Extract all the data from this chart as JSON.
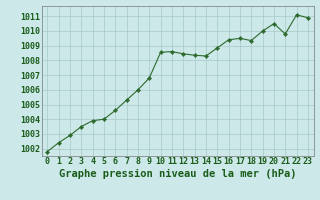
{
  "x": [
    0,
    1,
    2,
    3,
    4,
    5,
    6,
    7,
    8,
    9,
    10,
    11,
    12,
    13,
    14,
    15,
    16,
    17,
    18,
    19,
    20,
    21,
    22,
    23
  ],
  "y": [
    1001.8,
    1002.4,
    1002.9,
    1003.5,
    1003.9,
    1004.0,
    1004.6,
    1005.3,
    1006.0,
    1006.8,
    1008.55,
    1008.6,
    1008.45,
    1008.35,
    1008.3,
    1008.85,
    1009.4,
    1009.5,
    1009.35,
    1010.0,
    1010.5,
    1009.8,
    1011.1,
    1010.9
  ],
  "line_color": "#2d6a2d",
  "marker_color": "#2d6a2d",
  "bg_color": "#cce8e8",
  "grid_major_color": "#a8c8c8",
  "grid_minor_color": "#bcd8d8",
  "title": "Graphe pression niveau de la mer (hPa)",
  "ylim_min": 1001.5,
  "ylim_max": 1011.7,
  "yticks": [
    1002,
    1003,
    1004,
    1005,
    1006,
    1007,
    1008,
    1009,
    1010,
    1011
  ],
  "xticks": [
    0,
    1,
    2,
    3,
    4,
    5,
    6,
    7,
    8,
    9,
    10,
    11,
    12,
    13,
    14,
    15,
    16,
    17,
    18,
    19,
    20,
    21,
    22,
    23
  ],
  "title_fontsize": 7.5,
  "tick_fontsize": 6.0,
  "title_color": "#1a5c1a",
  "tick_color": "#1a5c1a"
}
